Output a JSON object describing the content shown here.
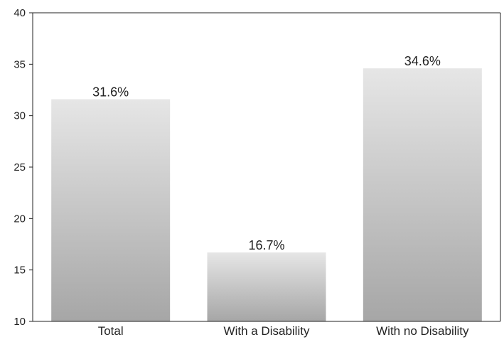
{
  "chart_data": {
    "type": "bar",
    "title": "",
    "xlabel": "",
    "ylabel": "",
    "categories": [
      "Total",
      "With a Disability",
      "With no Disability"
    ],
    "values": [
      31.6,
      16.7,
      34.6
    ],
    "data_labels": [
      "31.6%",
      "16.7%",
      "34.6%"
    ],
    "ylim": [
      10,
      40
    ],
    "y_ticks": [
      10,
      15,
      20,
      25,
      30,
      35,
      40
    ],
    "y_tick_labels": [
      "10",
      "15",
      "20",
      "25",
      "30",
      "35",
      "40"
    ],
    "grid": false,
    "legend": "none",
    "bar_gradient": {
      "top": "#e6e6e6",
      "bottom": "#a6a6a6"
    },
    "axis_color": "#222222"
  }
}
